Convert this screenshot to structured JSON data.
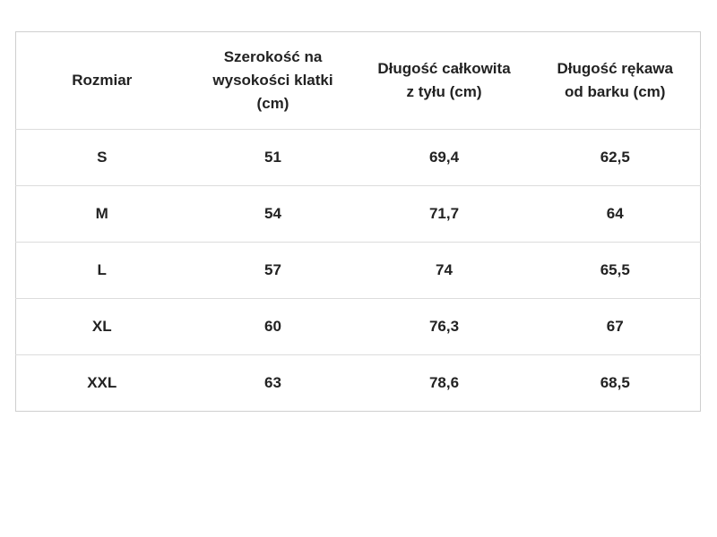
{
  "table": {
    "headers": [
      "Rozmiar",
      "Szerokość na\nwysokości klatki\n(cm)",
      "Długość całkowita\nz tyłu (cm)",
      "Długość rękawa\nod barku (cm)"
    ],
    "rows": [
      [
        "S",
        "51",
        "69,4",
        "62,5"
      ],
      [
        "M",
        "54",
        "71,7",
        "64"
      ],
      [
        "L",
        "57",
        "74",
        "65,5"
      ],
      [
        "XL",
        "60",
        "76,3",
        "67"
      ],
      [
        "XXL",
        "63",
        "78,6",
        "68,5"
      ]
    ]
  }
}
